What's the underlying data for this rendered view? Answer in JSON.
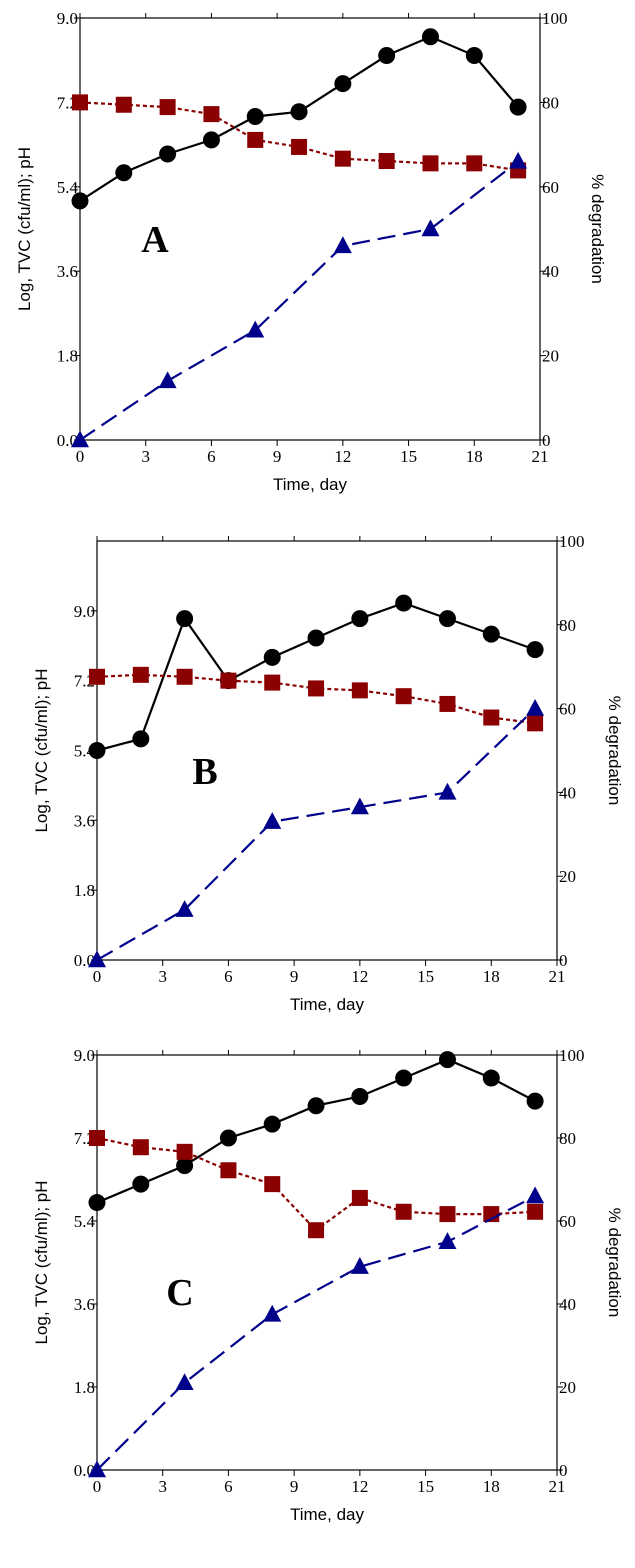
{
  "chart_data": [
    {
      "type": "line",
      "panel_label": "A",
      "xlabel": "Time, day",
      "ylabel": "Log, TVC (cfu/ml); pH",
      "y2label": "% degradation",
      "xlim": [
        0,
        21
      ],
      "ylim": [
        0,
        9.0
      ],
      "y2lim": [
        0,
        100
      ],
      "xticks": [
        "0",
        "3",
        "6",
        "9",
        "12",
        "15",
        "18",
        "21"
      ],
      "yticks": [
        "0.0",
        "1.8",
        "3.6",
        "5.4",
        "7.2",
        "9.0"
      ],
      "y2ticks": [
        "0",
        "20",
        "40",
        "60",
        "80",
        "100"
      ],
      "series": [
        {
          "name": "",
          "axis": "left",
          "marker": "circle",
          "line": "solid",
          "color": "#000000",
          "x": [
            0,
            2,
            4,
            6,
            8,
            10,
            12,
            14,
            16,
            18,
            20
          ],
          "y": [
            5.1,
            5.7,
            6.1,
            6.4,
            6.9,
            7.0,
            7.6,
            8.2,
            8.6,
            8.2,
            7.1
          ]
        },
        {
          "name": "",
          "axis": "left",
          "marker": "square",
          "line": "dotted",
          "color": "#8b0000",
          "x": [
            0,
            2,
            4,
            6,
            8,
            10,
            12,
            14,
            16,
            18,
            20
          ],
          "y": [
            7.2,
            7.15,
            7.1,
            6.95,
            6.4,
            6.25,
            6.0,
            5.95,
            5.9,
            5.9,
            5.75
          ]
        },
        {
          "name": "",
          "axis": "right",
          "marker": "triangle",
          "line": "dashed",
          "color": "#00008b",
          "x": [
            0,
            4,
            8,
            12,
            16,
            20
          ],
          "y": [
            0,
            14,
            26,
            46,
            50,
            66
          ]
        }
      ]
    },
    {
      "type": "line",
      "panel_label": "B",
      "xlabel": "Time, day",
      "ylabel": "Log, TVC (cfu/ml); pH",
      "y2label": "% degradation",
      "xlim": [
        0,
        21
      ],
      "ylim": [
        0,
        10.8
      ],
      "y2lim": [
        0,
        100
      ],
      "xticks": [
        "0",
        "3",
        "6",
        "9",
        "12",
        "15",
        "18",
        "21"
      ],
      "yticks": [
        "0.0",
        "1.8",
        "3.6",
        "5.4",
        "7.2",
        "9.0"
      ],
      "y2ticks": [
        "0",
        "20",
        "40",
        "60",
        "80",
        "100"
      ],
      "series": [
        {
          "name": "",
          "axis": "left",
          "marker": "circle",
          "line": "solid",
          "color": "#000000",
          "x": [
            0,
            2,
            4,
            6,
            8,
            10,
            12,
            14,
            16,
            18,
            20
          ],
          "y": [
            5.4,
            5.7,
            8.8,
            7.2,
            7.8,
            8.3,
            8.8,
            9.2,
            8.8,
            8.4,
            8.0
          ]
        },
        {
          "name": "",
          "axis": "left",
          "marker": "square",
          "line": "dotted",
          "color": "#8b0000",
          "x": [
            0,
            2,
            4,
            6,
            8,
            10,
            12,
            14,
            16,
            18,
            20
          ],
          "y": [
            7.3,
            7.35,
            7.3,
            7.2,
            7.15,
            7.0,
            6.95,
            6.8,
            6.6,
            6.25,
            6.1
          ]
        },
        {
          "name": "",
          "axis": "right",
          "marker": "triangle",
          "line": "dashed",
          "color": "#00008b",
          "x": [
            0,
            4,
            8,
            12,
            16,
            20
          ],
          "y": [
            0,
            12,
            33,
            36.5,
            40,
            60
          ]
        }
      ]
    },
    {
      "type": "line",
      "panel_label": "C",
      "xlabel": "Time, day",
      "ylabel": "Log, TVC (cfu/ml); pH",
      "y2label": "% degradation",
      "xlim": [
        0,
        21
      ],
      "ylim": [
        0,
        9.0
      ],
      "y2lim": [
        0,
        100
      ],
      "xticks": [
        "0",
        "3",
        "6",
        "9",
        "12",
        "15",
        "18",
        "21"
      ],
      "yticks": [
        "0.0",
        "1.8",
        "3.6",
        "5.4",
        "7.2",
        "9.0"
      ],
      "y2ticks": [
        "0",
        "20",
        "40",
        "60",
        "80",
        "100"
      ],
      "series": [
        {
          "name": "",
          "axis": "left",
          "marker": "circle",
          "line": "solid",
          "color": "#000000",
          "x": [
            0,
            2,
            4,
            6,
            8,
            10,
            12,
            14,
            16,
            18,
            20
          ],
          "y": [
            5.8,
            6.2,
            6.6,
            7.2,
            7.5,
            7.9,
            8.1,
            8.5,
            8.9,
            8.5,
            8.0
          ]
        },
        {
          "name": "",
          "axis": "left",
          "marker": "square",
          "line": "dotted",
          "color": "#8b0000",
          "x": [
            0,
            2,
            4,
            6,
            8,
            10,
            12,
            14,
            16,
            18,
            20
          ],
          "y": [
            7.2,
            7.0,
            6.9,
            6.5,
            6.2,
            5.2,
            5.9,
            5.6,
            5.55,
            5.55,
            5.6
          ]
        },
        {
          "name": "",
          "axis": "right",
          "marker": "triangle",
          "line": "dashed",
          "color": "#00008b",
          "x": [
            0,
            4,
            8,
            12,
            16,
            20
          ],
          "y": [
            0,
            21,
            37.5,
            49,
            55,
            66
          ]
        }
      ]
    }
  ]
}
